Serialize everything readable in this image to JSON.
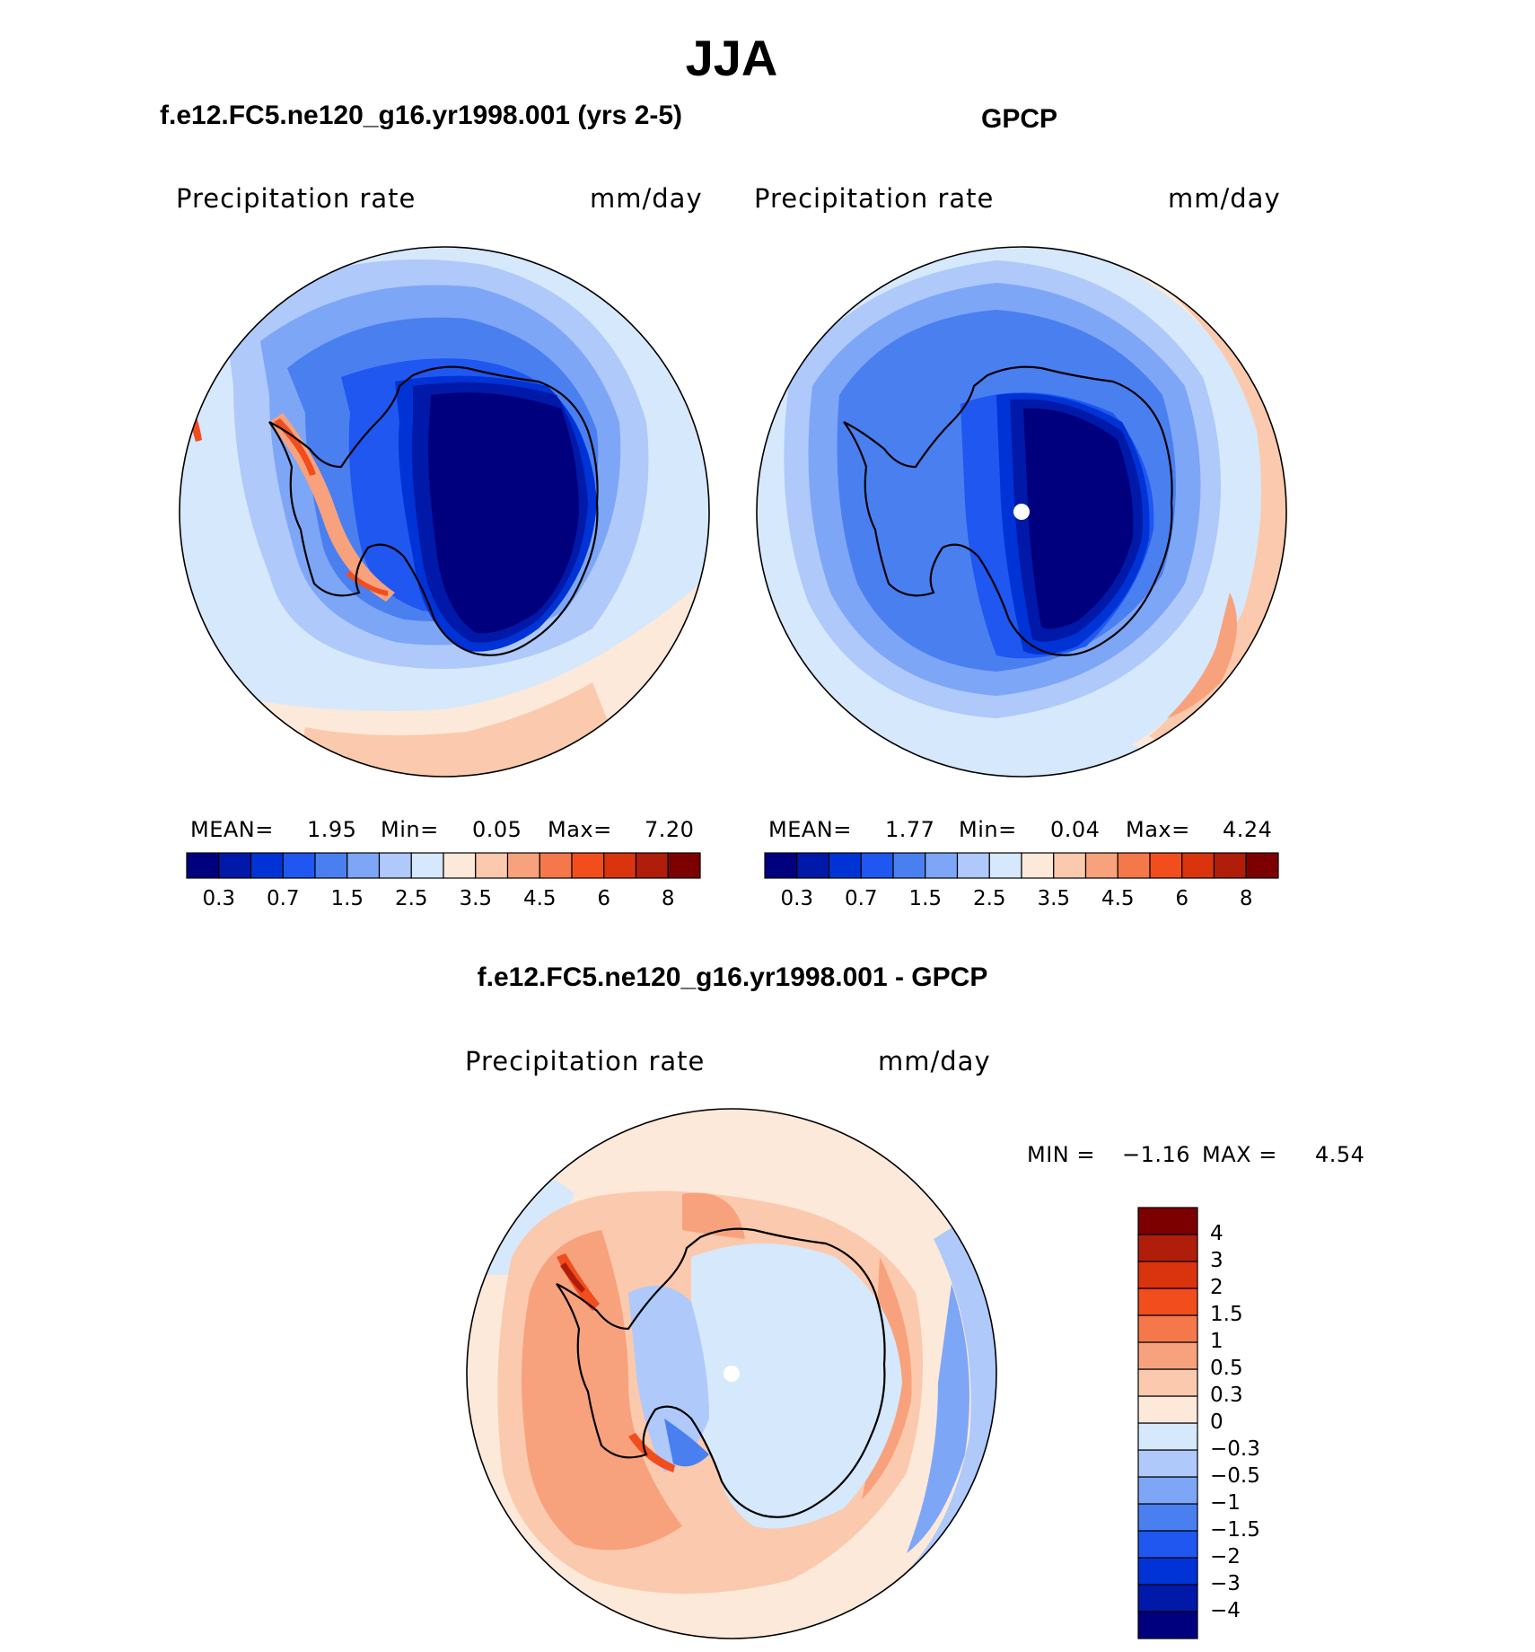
{
  "figure": {
    "title": "JJA",
    "season": "JJA",
    "units": "mm/day",
    "variable": "Precipitation  rate"
  },
  "panels": [
    {
      "id": "model",
      "subtitle": "f.e12.FC5.ne120_g16.yr1998.001 (yrs 2-5)",
      "left_label": "Precipitation  rate",
      "right_label": "mm/day",
      "stats": {
        "mean_label": "MEAN=",
        "mean": "1.95",
        "min_label": "Min=",
        "min": "0.05",
        "max_label": "Max=",
        "max": "7.20"
      }
    },
    {
      "id": "obs",
      "subtitle": "GPCP",
      "left_label": "Precipitation  rate",
      "right_label": "mm/day",
      "stats": {
        "mean_label": "MEAN=",
        "mean": "1.77",
        "min_label": "Min=",
        "min": "0.04",
        "max_label": "Max=",
        "max": "4.24"
      }
    },
    {
      "id": "diff",
      "subtitle": "f.e12.FC5.ne120_g16.yr1998.001 - GPCP",
      "left_label": "Precipitation  rate",
      "right_label": "mm/day",
      "stats": {
        "min_label": "MIN =",
        "min": "−1.16",
        "max_label": "MAX =",
        "max": "4.54"
      }
    }
  ],
  "colorbars": {
    "precip": {
      "colors": [
        "#00007f",
        "#0019a8",
        "#0033d6",
        "#1f57f0",
        "#4a7ff0",
        "#7ea6f7",
        "#aec9fa",
        "#d6e8fb",
        "#fde9d9",
        "#fbc9ad",
        "#f7a27c",
        "#f5784a",
        "#f24d1d",
        "#d9340e",
        "#b01d0a",
        "#7d0000"
      ],
      "tick_labels": [
        "0.3",
        "0.7",
        "1.5",
        "2.5",
        "3.5",
        "4.5",
        "6",
        "8"
      ]
    },
    "diff": {
      "colors": [
        "#00007f",
        "#0019a8",
        "#0033d6",
        "#1f57f0",
        "#4a7ff0",
        "#7ea6f7",
        "#aec9fa",
        "#d6e8fb",
        "#fde9d9",
        "#fbc9ad",
        "#f7a27c",
        "#f5784a",
        "#f24d1d",
        "#d9340e",
        "#b01d0a",
        "#7d0000"
      ],
      "tick_labels": [
        "−4",
        "−3",
        "−2",
        "−1.5",
        "−1",
        "−0.5",
        "−0.3",
        "0",
        "0.3",
        "0.5",
        "1",
        "1.5",
        "2",
        "3",
        "4"
      ]
    }
  },
  "map_colors": {
    "light_blue": "#d6e8fb",
    "pale_blue": "#aec9fa",
    "mid_blue": "#7ea6f7",
    "blue": "#4a7ff0",
    "deep_blue": "#1f57f0",
    "darker_blue": "#0033d6",
    "navy": "#0019a8",
    "darkest": "#00007f",
    "pale_orange": "#fde9d9",
    "light_orange": "#fbc9ad",
    "orange": "#f7a27c",
    "red_orange": "#f5784a",
    "red": "#f24d1d",
    "dark_red": "#b01d0a"
  }
}
